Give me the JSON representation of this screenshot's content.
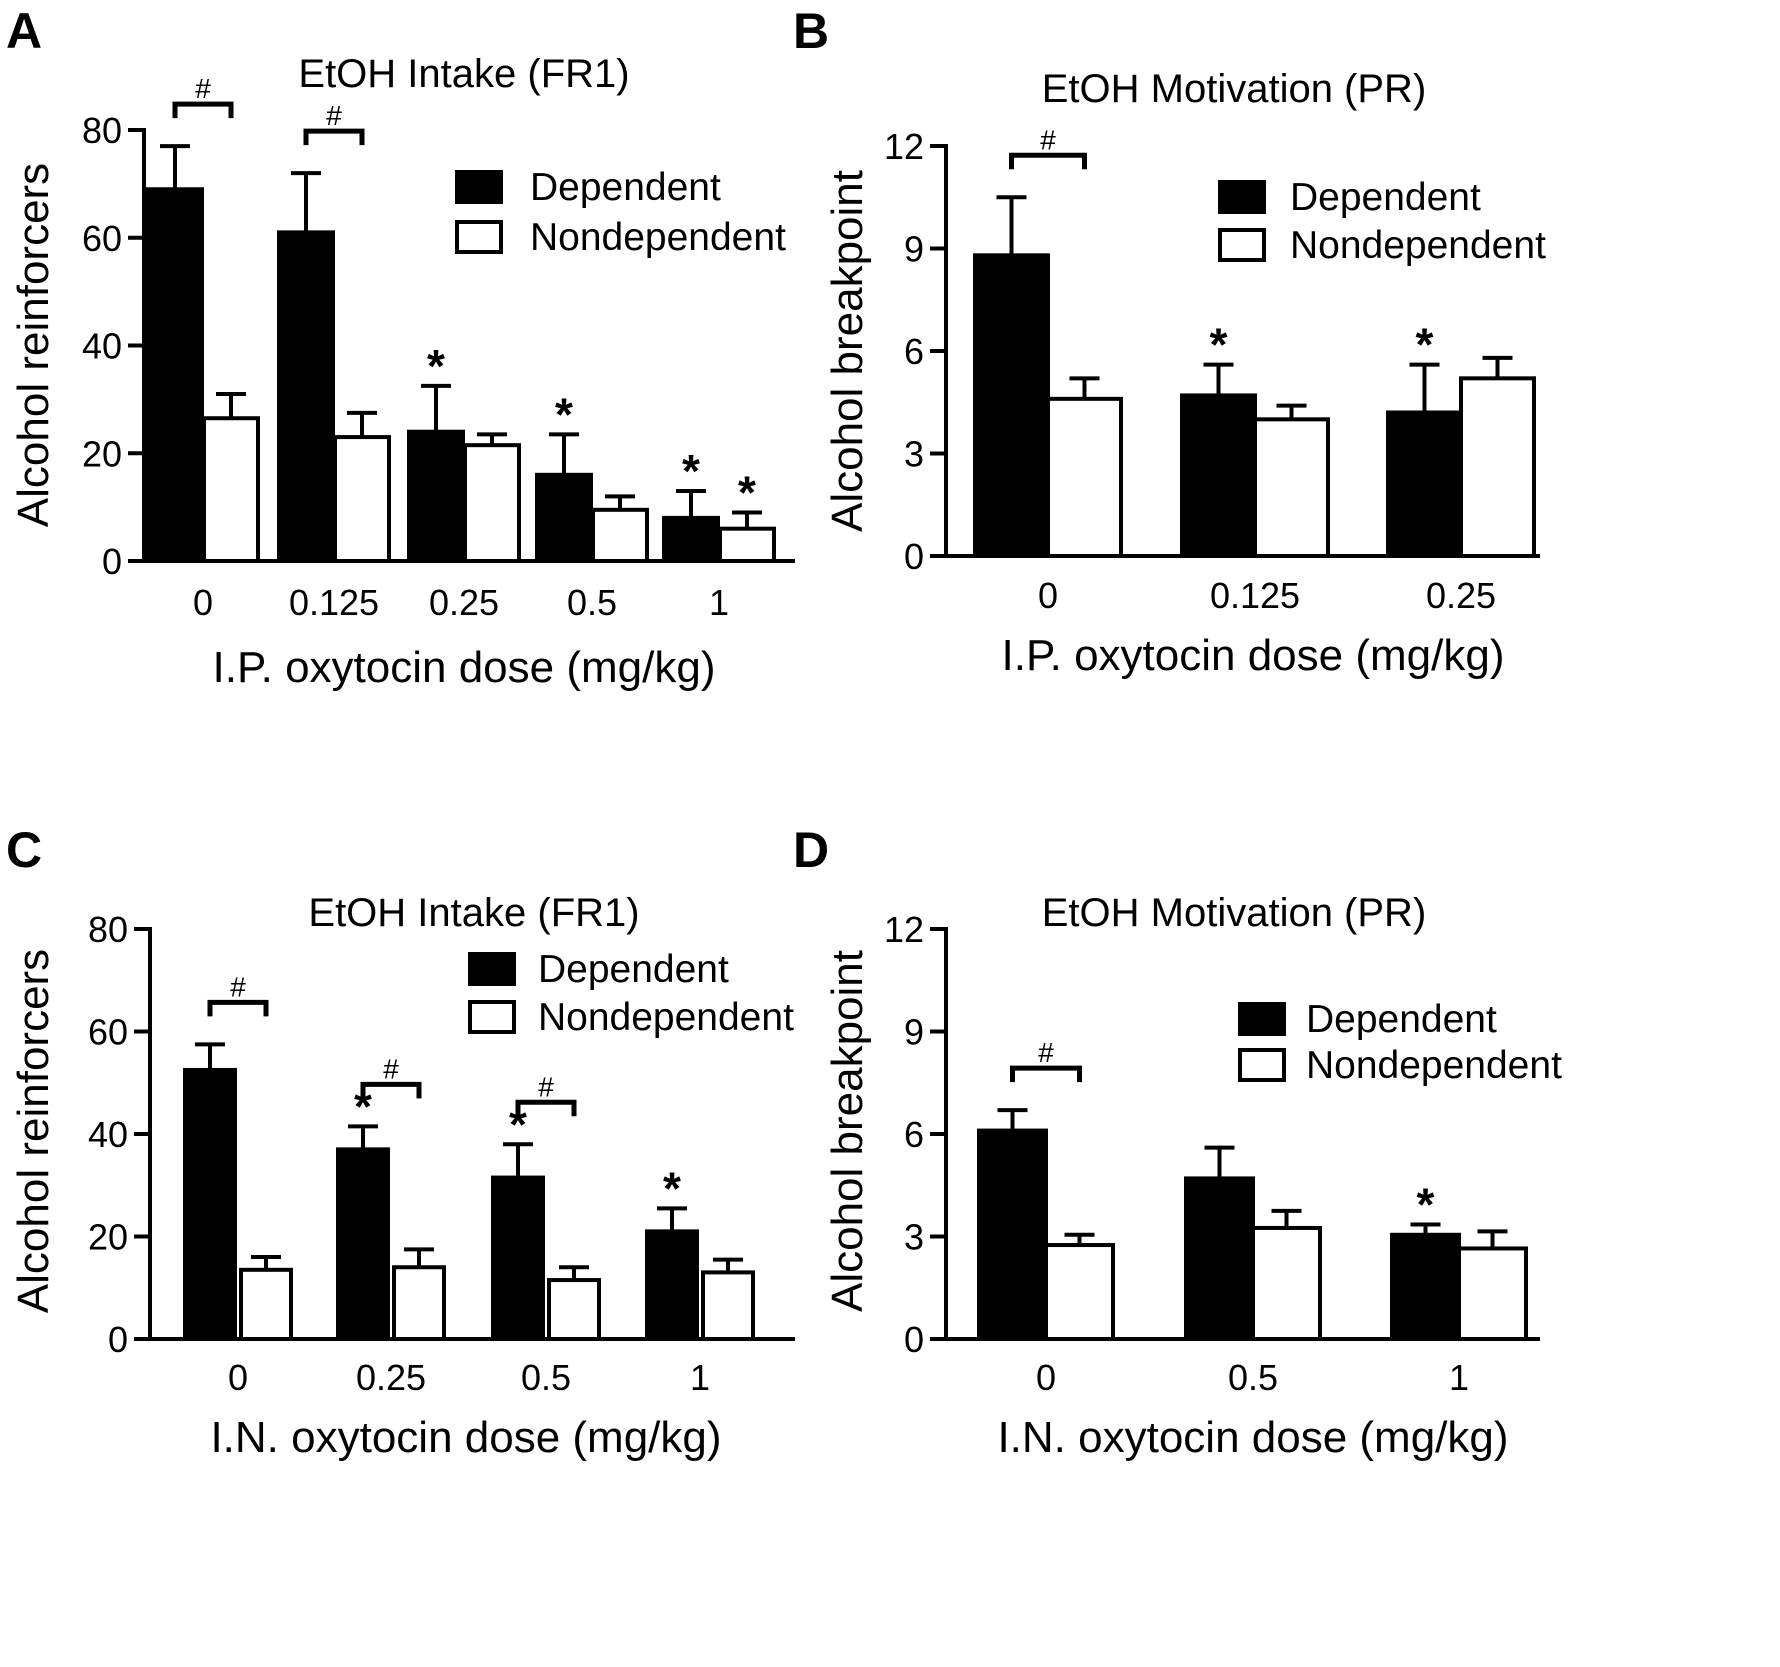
{
  "chart_data": [
    {
      "panel": "A",
      "type": "bar",
      "title": "EtOH Intake (FR1)",
      "xlabel": "I.P. oxytocin dose (mg/kg)",
      "ylabel": "Alcohol reinforcers",
      "ylim": [
        0,
        80
      ],
      "yticks": [
        "0",
        "20",
        "40",
        "60",
        "80"
      ],
      "categories": [
        "0",
        "0.125",
        "0.25",
        "0.5",
        "1"
      ],
      "legend_position": "top-right",
      "series": [
        {
          "name": "Dependent",
          "fill": "#000000",
          "values": [
            69,
            61,
            24,
            16,
            8
          ],
          "errors": [
            8,
            11,
            8.5,
            7.5,
            5
          ],
          "stars": [
            false,
            false,
            true,
            true,
            true
          ]
        },
        {
          "name": "Nondependent",
          "fill": "#ffffff",
          "values": [
            26.5,
            23,
            21.5,
            9.5,
            6
          ],
          "errors": [
            4.5,
            4.5,
            2,
            2.5,
            3
          ],
          "stars": [
            false,
            false,
            false,
            false,
            true
          ]
        }
      ],
      "brackets": [
        {
          "group": 0,
          "label": "#"
        },
        {
          "group": 1,
          "label": "#"
        }
      ]
    },
    {
      "panel": "B",
      "type": "bar",
      "title": "EtOH Motivation (PR)",
      "xlabel": "I.P. oxytocin dose (mg/kg)",
      "ylabel": "Alcohol breakpoint",
      "ylim": [
        0,
        12
      ],
      "yticks": [
        "0",
        "3",
        "6",
        "9",
        "12"
      ],
      "categories": [
        "0",
        "0.125",
        "0.25"
      ],
      "legend_position": "top-right",
      "series": [
        {
          "name": "Dependent",
          "fill": "#000000",
          "values": [
            8.8,
            4.7,
            4.2
          ],
          "errors": [
            1.7,
            0.9,
            1.4
          ],
          "stars": [
            false,
            true,
            true
          ]
        },
        {
          "name": "Nondependent",
          "fill": "#ffffff",
          "values": [
            4.6,
            4.0,
            5.2
          ],
          "errors": [
            0.6,
            0.4,
            0.6
          ],
          "stars": [
            false,
            false,
            false
          ]
        }
      ],
      "brackets": [
        {
          "group": 0,
          "label": "#"
        }
      ]
    },
    {
      "panel": "C",
      "type": "bar",
      "title": "EtOH Intake (FR1)",
      "xlabel": "I.N. oxytocin dose (mg/kg)",
      "ylabel": "Alcohol reinforcers",
      "ylim": [
        0,
        80
      ],
      "yticks": [
        "0",
        "20",
        "40",
        "60",
        "80"
      ],
      "categories": [
        "0",
        "0.25",
        "0.5",
        "1"
      ],
      "legend_position": "top-right",
      "series": [
        {
          "name": "Dependent",
          "fill": "#000000",
          "values": [
            52.5,
            37,
            31.5,
            21
          ],
          "errors": [
            5,
            4.5,
            6.5,
            4.5
          ],
          "stars": [
            false,
            true,
            true,
            true
          ]
        },
        {
          "name": "Nondependent",
          "fill": "#ffffff",
          "values": [
            13.5,
            14,
            11.5,
            13
          ],
          "errors": [
            2.5,
            3.5,
            2.5,
            2.5
          ],
          "stars": [
            false,
            false,
            false,
            false
          ]
        }
      ],
      "brackets": [
        {
          "group": 0,
          "label": "#"
        },
        {
          "group": 1,
          "label": "#"
        },
        {
          "group": 2,
          "label": "#"
        }
      ]
    },
    {
      "panel": "D",
      "type": "bar",
      "title": "EtOH Motivation (PR)",
      "xlabel": "I.N. oxytocin dose (mg/kg)",
      "ylabel": "Alcohol breakpoint",
      "ylim": [
        0,
        12
      ],
      "yticks": [
        "0",
        "3",
        "6",
        "9",
        "12"
      ],
      "categories": [
        "0",
        "0.5",
        "1"
      ],
      "legend_position": "top-right",
      "series": [
        {
          "name": "Dependent",
          "fill": "#000000",
          "values": [
            6.1,
            4.7,
            3.05
          ],
          "errors": [
            0.6,
            0.9,
            0.3
          ],
          "stars": [
            false,
            false,
            true
          ]
        },
        {
          "name": "Nondependent",
          "fill": "#ffffff",
          "values": [
            2.75,
            3.25,
            2.65
          ],
          "errors": [
            0.3,
            0.5,
            0.5
          ],
          "stars": [
            false,
            false,
            false
          ]
        }
      ],
      "brackets": [
        {
          "group": 0,
          "label": "#"
        }
      ]
    }
  ]
}
